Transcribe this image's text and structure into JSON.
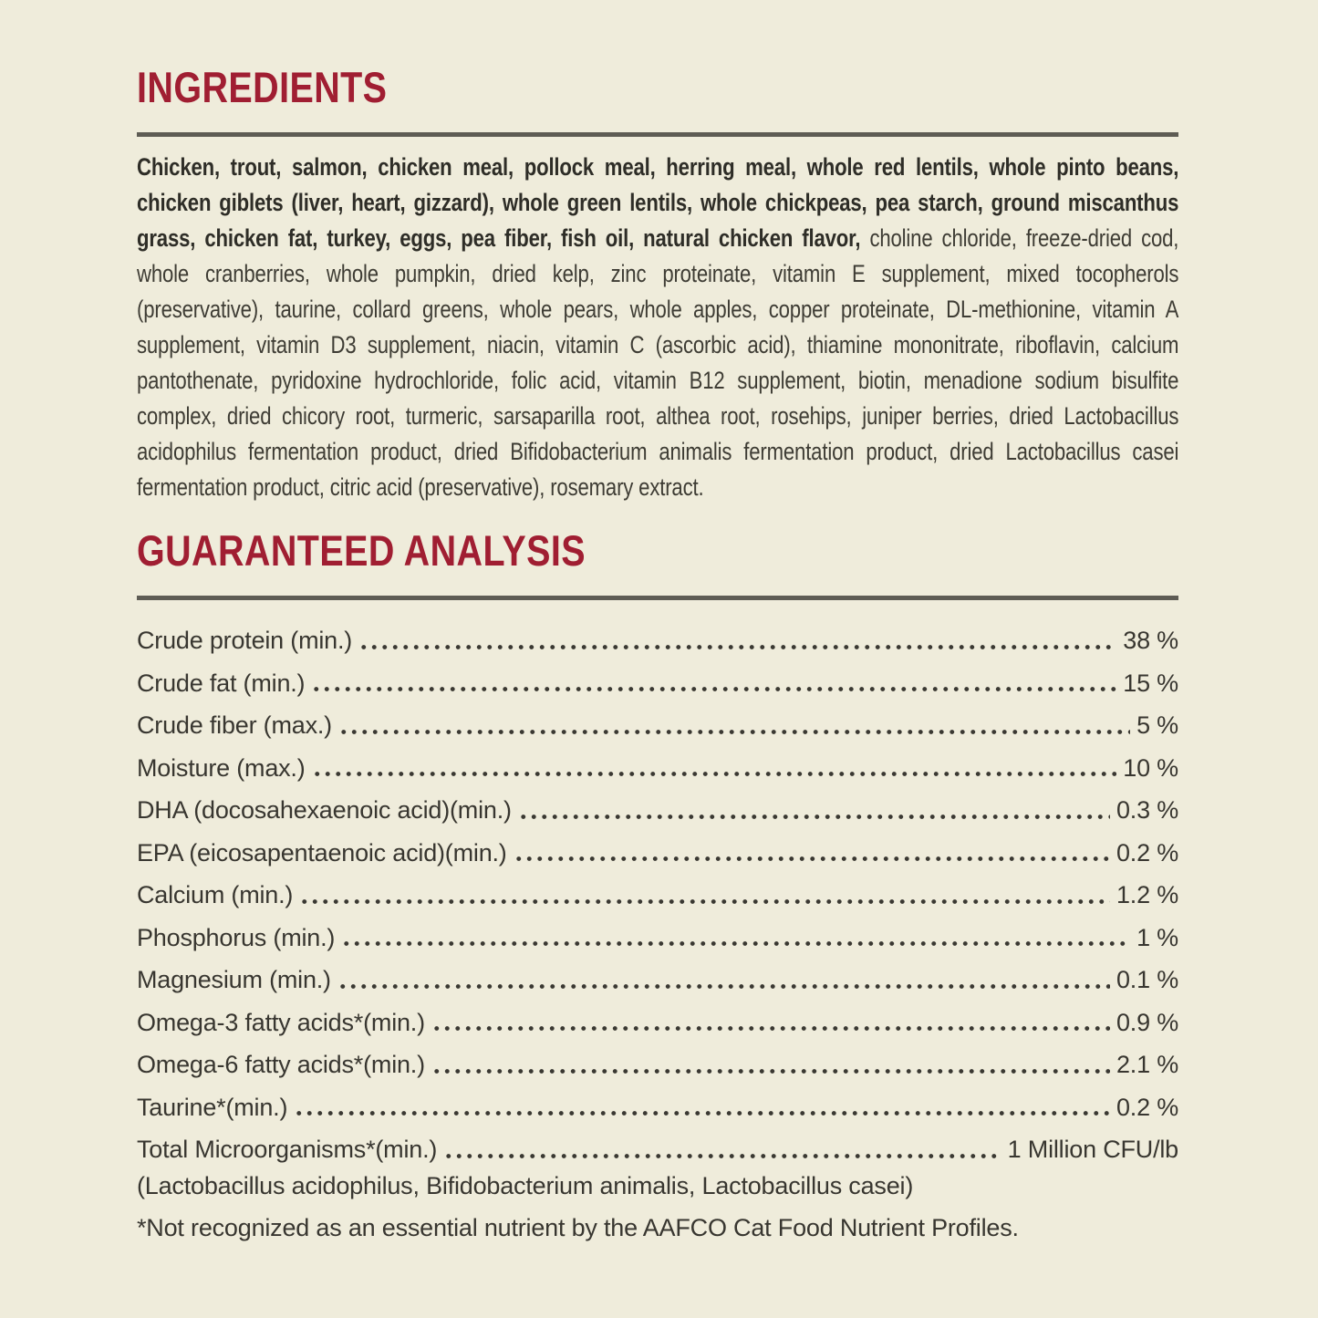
{
  "page": {
    "colors": {
      "background": "#efecdb",
      "heading_red": "#a01e32",
      "rule_gray": "#5e5c54",
      "text_dark": "#2e2d27",
      "text_regular": "#3e3c34"
    }
  },
  "ingredients": {
    "title": "INGREDIENTS",
    "bold_text": "Chicken, trout, salmon, chicken meal, pollock meal, herring meal, whole red lentils, whole pinto beans, chicken giblets (liver, heart, gizzard), whole green lentils, whole chickpeas, pea starch, ground miscanthus grass, chicken fat, turkey, eggs, pea fiber, fish oil, natural chicken flavor,",
    "regular_text": "choline chloride, freeze-dried cod, whole cranberries, whole pumpkin, dried kelp, zinc proteinate, vitamin E supplement, mixed tocopherols (preservative), taurine, collard greens, whole pears, whole apples, copper proteinate, DL-methionine, vitamin A supplement, vitamin D3 supplement, niacin, vitamin C (ascorbic acid), thiamine mononitrate, riboflavin, calcium pantothenate, pyridoxine hydrochloride, folic acid, vitamin B12 supplement, biotin, menadione sodium bisulfite complex, dried chicory root, turmeric, sarsaparilla root, althea root, rosehips, juniper berries, dried Lactobacillus acidophilus fermentation product, dried Bifidobacterium animalis fermentation product, dried Lactobacillus casei fermentation product, citric acid (preservative), rosemary extract."
  },
  "guaranteed_analysis": {
    "title": "GUARANTEED ANALYSIS",
    "rows": [
      {
        "label": "Crude protein (min.)",
        "value": "38 %"
      },
      {
        "label": "Crude fat (min.)",
        "value": "15 %"
      },
      {
        "label": "Crude fiber (max.)",
        "value": "5 %"
      },
      {
        "label": "Moisture (max.)",
        "value": "10 %"
      },
      {
        "label": "DHA (docosahexaenoic acid)(min.)",
        "value": "0.3 %"
      },
      {
        "label": "EPA (eicosapentaenoic acid)(min.)",
        "value": "0.2 %"
      },
      {
        "label": "Calcium (min.)",
        "value": "1.2 %"
      },
      {
        "label": "Phosphorus (min.)",
        "value": "1 %"
      },
      {
        "label": "Magnesium (min.)",
        "value": "0.1 %"
      },
      {
        "label": "Omega-3 fatty acids*(min.)",
        "value": "0.9 %"
      },
      {
        "label": "Omega-6 fatty acids*(min.)",
        "value": "2.1 %"
      },
      {
        "label": "Taurine*(min.)",
        "value": "0.2 %"
      },
      {
        "label": "Total Microorganisms*(min.)",
        "value": "1 Million CFU/lb"
      }
    ],
    "microorganisms_detail": "(Lactobacillus acidophilus, Bifidobacterium animalis, Lactobacillus casei)",
    "footnote": "*Not recognized as an essential nutrient by the AAFCO Cat Food Nutrient Profiles."
  }
}
